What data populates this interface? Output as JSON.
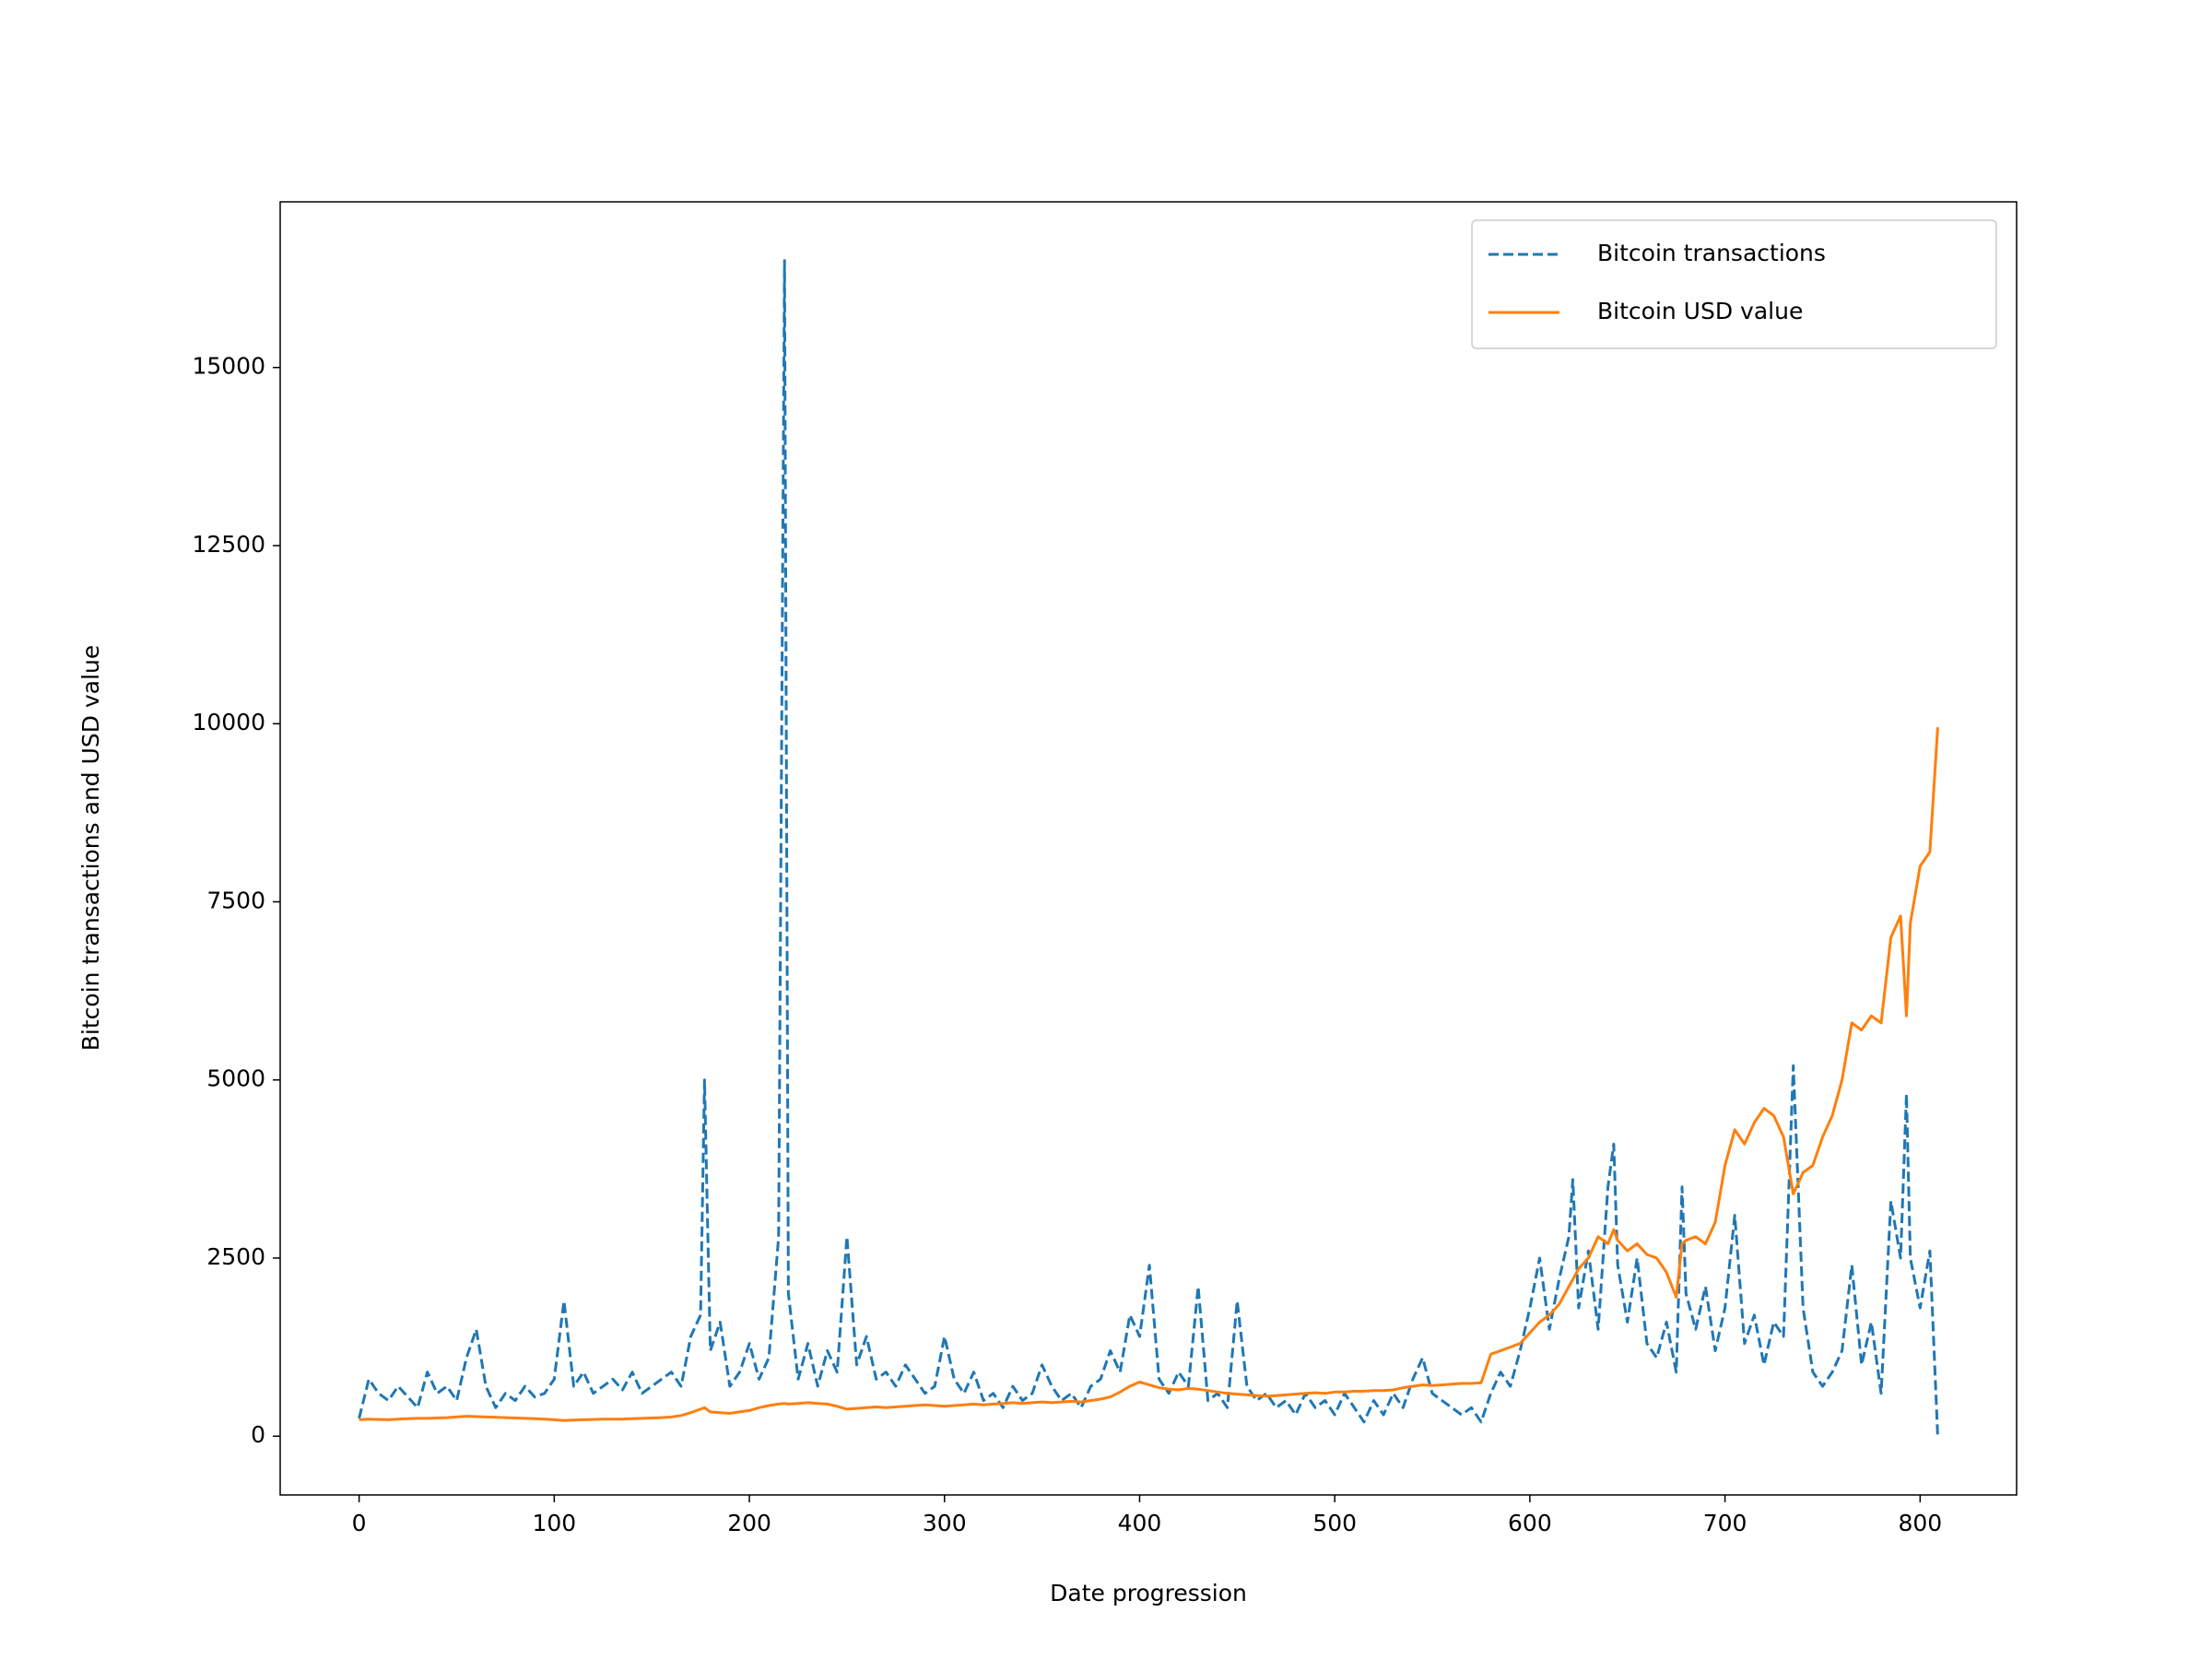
{
  "chart_data": {
    "type": "line",
    "x_label": "Date progression",
    "y_label": "Bitcoin transactions and USD value",
    "legend": "upper right",
    "xlim": [
      -40.45,
      849.45
    ],
    "ylim": [
      -825,
      17325
    ],
    "xticks": [
      0,
      100,
      200,
      300,
      400,
      500,
      600,
      700,
      800
    ],
    "yticks": [
      0,
      2500,
      5000,
      7500,
      10000,
      12500,
      15000
    ],
    "x": [
      0,
      5,
      10,
      15,
      20,
      25,
      30,
      35,
      40,
      45,
      50,
      55,
      60,
      65,
      70,
      75,
      80,
      85,
      90,
      95,
      100,
      105,
      110,
      115,
      120,
      125,
      130,
      135,
      140,
      145,
      150,
      155,
      160,
      165,
      170,
      175,
      177,
      180,
      185,
      190,
      195,
      200,
      205,
      210,
      215,
      218,
      220,
      225,
      230,
      235,
      240,
      245,
      250,
      255,
      260,
      265,
      270,
      275,
      280,
      285,
      290,
      295,
      300,
      305,
      310,
      315,
      320,
      325,
      330,
      335,
      340,
      345,
      350,
      355,
      360,
      365,
      370,
      375,
      380,
      385,
      390,
      395,
      400,
      405,
      410,
      415,
      420,
      425,
      430,
      435,
      440,
      445,
      450,
      455,
      460,
      465,
      470,
      475,
      480,
      485,
      490,
      495,
      500,
      505,
      510,
      515,
      520,
      525,
      530,
      535,
      540,
      545,
      550,
      555,
      560,
      565,
      570,
      575,
      580,
      585,
      590,
      595,
      600,
      605,
      610,
      615,
      620,
      622,
      625,
      630,
      635,
      640,
      643,
      645,
      650,
      655,
      660,
      665,
      670,
      675,
      678,
      680,
      685,
      690,
      695,
      700,
      705,
      710,
      715,
      720,
      725,
      730,
      735,
      740,
      745,
      750,
      755,
      760,
      765,
      770,
      775,
      780,
      785,
      790,
      793,
      795,
      800,
      805,
      809
    ],
    "series": [
      {
        "name": "Bitcoin transactions",
        "color": "#1f77b4",
        "dashed": true,
        "values": [
          250,
          800,
          600,
          500,
          700,
          550,
          400,
          900,
          600,
          700,
          500,
          1100,
          1500,
          700,
          400,
          600,
          500,
          700,
          550,
          600,
          800,
          1900,
          700,
          900,
          600,
          700,
          800,
          650,
          900,
          600,
          700,
          800,
          900,
          700,
          1400,
          1700,
          5000,
          1200,
          1600,
          700,
          900,
          1300,
          800,
          1100,
          2800,
          16500,
          2000,
          800,
          1300,
          700,
          1200,
          900,
          2800,
          1000,
          1400,
          800,
          900,
          700,
          1000,
          800,
          600,
          700,
          1400,
          800,
          600,
          900,
          500,
          600,
          400,
          700,
          500,
          600,
          1000,
          700,
          500,
          600,
          400,
          700,
          800,
          1200,
          900,
          1700,
          1400,
          2400,
          800,
          600,
          900,
          700,
          2100,
          500,
          600,
          400,
          1900,
          700,
          500,
          600,
          400,
          500,
          300,
          600,
          400,
          500,
          300,
          600,
          400,
          200,
          500,
          300,
          600,
          400,
          800,
          1100,
          600,
          500,
          400,
          300,
          400,
          200,
          600,
          900,
          700,
          1200,
          1800,
          2500,
          1500,
          2200,
          2800,
          3600,
          1800,
          2600,
          1500,
          3500,
          4100,
          2400,
          1600,
          2500,
          1300,
          1100,
          1600,
          900,
          3500,
          2000,
          1500,
          2100,
          1200,
          1800,
          3100,
          1300,
          1700,
          1000,
          1600,
          1400,
          5200,
          1800,
          900,
          700,
          900,
          1200,
          2400,
          1000,
          1600,
          600,
          3300,
          2500,
          4800,
          2500,
          1800,
          2600,
          0
        ]
      },
      {
        "name": "Bitcoin USD value",
        "color": "#ff7f0e",
        "dashed": false,
        "values": [
          230,
          240,
          235,
          230,
          240,
          245,
          250,
          250,
          255,
          260,
          270,
          280,
          275,
          270,
          265,
          260,
          255,
          250,
          245,
          240,
          230,
          220,
          225,
          230,
          235,
          240,
          240,
          240,
          245,
          250,
          255,
          260,
          270,
          290,
          330,
          380,
          400,
          340,
          330,
          320,
          340,
          360,
          400,
          430,
          450,
          460,
          450,
          460,
          470,
          460,
          450,
          420,
          380,
          390,
          400,
          410,
          400,
          410,
          420,
          430,
          440,
          430,
          420,
          430,
          440,
          450,
          440,
          450,
          460,
          470,
          460,
          470,
          480,
          470,
          480,
          490,
          480,
          500,
          520,
          550,
          620,
          700,
          760,
          720,
          680,
          660,
          650,
          670,
          660,
          640,
          620,
          600,
          590,
          580,
          570,
          560,
          570,
          580,
          590,
          600,
          610,
          600,
          620,
          620,
          630,
          630,
          640,
          640,
          650,
          680,
          700,
          720,
          710,
          720,
          730,
          740,
          740,
          750,
          1150,
          1200,
          1250,
          1300,
          1450,
          1600,
          1700,
          1850,
          2100,
          2200,
          2350,
          2500,
          2800,
          2700,
          2900,
          2750,
          2600,
          2700,
          2550,
          2500,
          2300,
          1950,
          2700,
          2750,
          2800,
          2700,
          3000,
          3800,
          4300,
          4100,
          4400,
          4600,
          4500,
          4200,
          3400,
          3700,
          3800,
          4200,
          4500,
          5000,
          5800,
          5700,
          5900,
          5800,
          7000,
          7300,
          5900,
          7200,
          8000,
          8200,
          9950
        ]
      }
    ]
  }
}
